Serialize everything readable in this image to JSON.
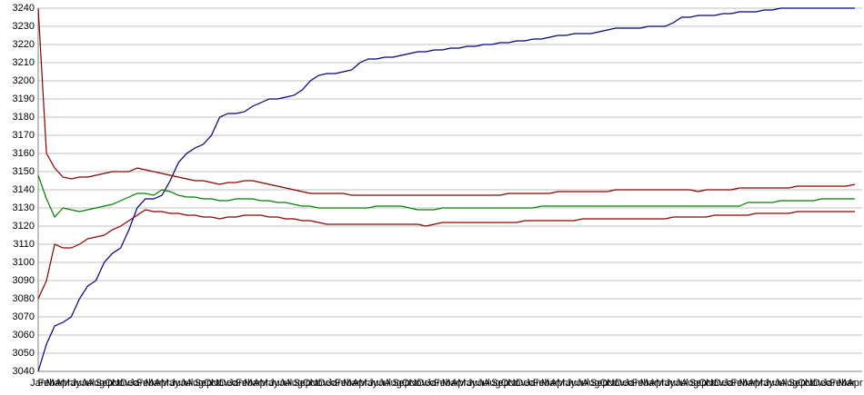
{
  "chart_data": {
    "type": "line",
    "categories": [
      "Jan",
      "Feb",
      "Mar",
      "Apr",
      "May",
      "Jun",
      "Jul",
      "Aug",
      "Sep",
      "Oct",
      "Nov",
      "Dec",
      "Jan",
      "Feb",
      "Mar",
      "Apr",
      "May",
      "Jun",
      "Jul",
      "Aug",
      "Sep",
      "Oct",
      "Nov",
      "Dec",
      "Jan",
      "Feb",
      "Mar",
      "Apr",
      "May",
      "Jun",
      "Jul",
      "Aug",
      "Sep",
      "Oct",
      "Nov",
      "Dec",
      "Jan",
      "Feb",
      "Mar",
      "Apr",
      "May",
      "Jun",
      "Jul",
      "Aug",
      "Sep",
      "Oct",
      "Nov",
      "Dec",
      "Jan",
      "Feb",
      "Mar",
      "Apr",
      "May",
      "Jun",
      "Jul",
      "Aug",
      "Sep",
      "Oct",
      "Nov",
      "Dec",
      "Jan",
      "Feb",
      "Mar",
      "Apr",
      "May",
      "Jun",
      "Jul",
      "Aug",
      "Sep",
      "Oct",
      "Nov",
      "Dec",
      "Jan",
      "Feb",
      "Mar",
      "Apr",
      "May",
      "Jun",
      "Jul",
      "Aug",
      "Sep",
      "Oct",
      "Nov",
      "Dec",
      "Jan",
      "Feb",
      "Mar",
      "Apr",
      "May",
      "Jun",
      "Jul",
      "Aug",
      "Sep",
      "Oct",
      "Nov",
      "Dec",
      "Jan",
      "Feb",
      "Mar",
      "Apr"
    ],
    "series": [
      {
        "color": "#000080",
        "values": [
          3040,
          3055,
          3065,
          3067,
          3070,
          3080,
          3087,
          3090,
          3100,
          3105,
          3108,
          3118,
          3130,
          3135,
          3135,
          3137,
          3145,
          3155,
          3160,
          3163,
          3165,
          3170,
          3180,
          3182,
          3182,
          3183,
          3186,
          3188,
          3190,
          3190,
          3191,
          3192,
          3195,
          3200,
          3203,
          3204,
          3204,
          3205,
          3206,
          3210,
          3212,
          3212,
          3213,
          3213,
          3214,
          3215,
          3216,
          3216,
          3217,
          3217,
          3218,
          3218,
          3219,
          3219,
          3220,
          3220,
          3221,
          3221,
          3222,
          3222,
          3223,
          3223,
          3224,
          3225,
          3225,
          3226,
          3226,
          3226,
          3227,
          3228,
          3229,
          3229,
          3229,
          3229,
          3230,
          3230,
          3230,
          3232,
          3235,
          3235,
          3236,
          3236,
          3236,
          3237,
          3237,
          3238,
          3238,
          3238,
          3239,
          3239,
          3240,
          3240,
          3240,
          3240,
          3240,
          3240,
          3240,
          3240,
          3240,
          3240
        ]
      },
      {
        "color": "#008000",
        "values": [
          3148,
          3135,
          3125,
          3130,
          3129,
          3128,
          3129,
          3130,
          3131,
          3132,
          3134,
          3136,
          3138,
          3138,
          3137,
          3140,
          3139,
          3137,
          3136,
          3136,
          3135,
          3135,
          3134,
          3134,
          3135,
          3135,
          3135,
          3134,
          3134,
          3133,
          3133,
          3132,
          3131,
          3131,
          3130,
          3130,
          3130,
          3130,
          3130,
          3130,
          3130,
          3131,
          3131,
          3131,
          3131,
          3130,
          3129,
          3129,
          3129,
          3130,
          3130,
          3130,
          3130,
          3130,
          3130,
          3130,
          3130,
          3130,
          3130,
          3130,
          3130,
          3131,
          3131,
          3131,
          3131,
          3131,
          3131,
          3131,
          3131,
          3131,
          3131,
          3131,
          3131,
          3131,
          3131,
          3131,
          3131,
          3131,
          3131,
          3131,
          3131,
          3131,
          3131,
          3131,
          3131,
          3131,
          3133,
          3133,
          3133,
          3133,
          3134,
          3134,
          3134,
          3134,
          3134,
          3135,
          3135,
          3135,
          3135,
          3135
        ]
      },
      {
        "color": "#8b0000",
        "values": [
          3240,
          3160,
          3152,
          3147,
          3146,
          3147,
          3147,
          3148,
          3149,
          3150,
          3150,
          3150,
          3152,
          3151,
          3150,
          3149,
          3148,
          3147,
          3146,
          3145,
          3145,
          3144,
          3143,
          3144,
          3144,
          3145,
          3145,
          3144,
          3143,
          3142,
          3141,
          3140,
          3139,
          3138,
          3138,
          3138,
          3138,
          3138,
          3137,
          3137,
          3137,
          3137,
          3137,
          3137,
          3137,
          3137,
          3137,
          3137,
          3137,
          3137,
          3137,
          3137,
          3137,
          3137,
          3137,
          3137,
          3137,
          3138,
          3138,
          3138,
          3138,
          3138,
          3138,
          3139,
          3139,
          3139,
          3139,
          3139,
          3139,
          3139,
          3140,
          3140,
          3140,
          3140,
          3140,
          3140,
          3140,
          3140,
          3140,
          3140,
          3139,
          3140,
          3140,
          3140,
          3140,
          3141,
          3141,
          3141,
          3141,
          3141,
          3141,
          3141,
          3142,
          3142,
          3142,
          3142,
          3142,
          3142,
          3142,
          3143
        ]
      },
      {
        "color": "#8b0000",
        "values": [
          3080,
          3090,
          3110,
          3108,
          3108,
          3110,
          3113,
          3114,
          3115,
          3118,
          3120,
          3123,
          3126,
          3129,
          3128,
          3128,
          3127,
          3127,
          3126,
          3126,
          3125,
          3125,
          3124,
          3125,
          3125,
          3126,
          3126,
          3126,
          3125,
          3125,
          3124,
          3124,
          3123,
          3123,
          3122,
          3121,
          3121,
          3121,
          3121,
          3121,
          3121,
          3121,
          3121,
          3121,
          3121,
          3121,
          3121,
          3120,
          3121,
          3122,
          3122,
          3122,
          3122,
          3122,
          3122,
          3122,
          3122,
          3122,
          3122,
          3123,
          3123,
          3123,
          3123,
          3123,
          3123,
          3123,
          3124,
          3124,
          3124,
          3124,
          3124,
          3124,
          3124,
          3124,
          3124,
          3124,
          3124,
          3125,
          3125,
          3125,
          3125,
          3125,
          3126,
          3126,
          3126,
          3126,
          3126,
          3127,
          3127,
          3127,
          3127,
          3127,
          3128,
          3128,
          3128,
          3128,
          3128,
          3128,
          3128,
          3128
        ]
      }
    ],
    "ylim": [
      3040,
      3240
    ],
    "yticks": [
      3040,
      3050,
      3060,
      3070,
      3080,
      3090,
      3100,
      3110,
      3120,
      3130,
      3140,
      3150,
      3160,
      3170,
      3180,
      3190,
      3200,
      3210,
      3220,
      3230,
      3240
    ],
    "grid": true
  }
}
